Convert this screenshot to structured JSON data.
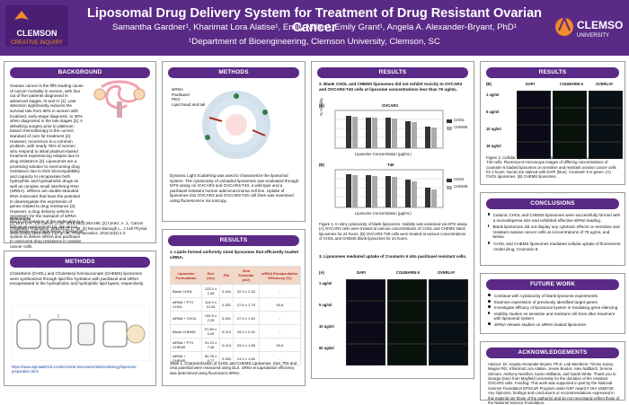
{
  "header": {
    "title": "Liposomal Drug Delivery System for Treatment of Drug Resistant Ovarian Cancer",
    "authors": "Samantha Gardner¹, Kharimat Lora Alatise¹, Emily Miller¹, Emily Grant¹, Angela A. Alexander-Bryant, PhD¹",
    "affiliation": "¹Department of Bioengineering, Clemson University, Clemson, SC",
    "left_logo_line1": "CLEMSON",
    "left_logo_line2": "CREATIVE INQUIRY",
    "right_logo_text": "CLEMSON",
    "right_logo_sub": "UNIVERSITY"
  },
  "sections": {
    "background": {
      "title": "BACKGROUND",
      "body": "Ovarian cancer is the fifth leading cause of cancer mortality in women, with four out of five patients diagnosed in advanced stages, III and IV [1]. Late detection significantly reduces the survival rate from 90% in women with localized, early-stage diagnosis, to 30% when diagnosed in the late stages [2]. A debulking surgery prior to platinum-based chemotherapy is the current standard of care for treatment [2]. However, recurrence is a common problem, with nearly 75% of women who respond to initial platinum-based treatment experiencing relapse due to drug resistance [3]. Liposomes are a promising solution to overcoming drug resistance due to their biocompatibility and capacity to encapsulate both hydrophilic and hydrophobic drugs as well as complex small interfering RNA (siRNA). siRNAs are double-stranded RNA molecules that have the potential to downregulate the expression of genes related to drug resistance [4]. However, a drug delivery vehicle is necessary for the transport of siRNA due to degradation of the molecules in a biological environment [4]. We aim to synthesize and characterize a liposomal system to deliver siRNA and paclitaxel to overcome drug resistance in ovarian cancer cells.",
      "references_title": "References",
      "references": "[1] Torre L. A., Ca Cancer J Clin. 2018;68(4):284-296. [2] Cortez, A. J., Cancer Chemother Pharmacol. 2018;81(1):17-38. [3] Norouzi-Barough L., J Cell Physiol. 2018;233(6):4546-4562. [4] Fan W., Pharmaceutics. 2018;10(4):1-2."
    },
    "methods_left": {
      "title": "METHODS",
      "body": "Cholesterol (CHOL) and Cholesteryl hemisuccinate (CHEMS) liposomes were synthesized through lipid film hydration with paclitaxel and siRNA encapsulated in the hydrophobic and hydrophilic lipid layers, respectively.",
      "link": "https://www.sigmaaldrich.com/technical-documents/articles/biology/liposome-preparation.html"
    },
    "methods_center": {
      "title": "METHODS",
      "legend": [
        "siRNA",
        "Paclitaxel",
        "PEG",
        "Lipid head and tail"
      ],
      "body": "Dynamic Light Scattering was used to characterize the liposomal system. The cytotoxicity of unloaded liposomes was evaluated through MTS assay on OVCAR3 and OVCAR3-T40, a wild-type and a paclitaxel-resistant human adenocarcinoma cell line. Uptake of liposomes into OVCAR3 and OVCAR3-T40 cell lines was examined using fluorescence microscopy."
    },
    "results_center": {
      "title": "RESULTS",
      "point1": "1. Lipids formed uniformly sized liposomes that efficiently loaded siRNA.",
      "table": {
        "headers": [
          "Liposome Formulation",
          "Size (nm)",
          "PDI",
          "Zeta Potential (mV)",
          "siRNA Encapsulation Efficiency (%)"
        ],
        "rows": [
          [
            "Blank CHOL",
            "123.0 ± 2.49",
            "0.164",
            "32.3 ± 2.18",
            "-"
          ],
          [
            "siRNA + PTX CHOL",
            "114.9 ± 10.35",
            "0.251",
            "27.6 ± 1.79",
            "93.8"
          ],
          [
            "siRNA + CHOL",
            "100.5 ± 2.25",
            "0.331",
            "27.4 ± 1.40",
            "-"
          ],
          [
            "Blank CHEMS",
            "97.89 ± 0.09",
            "0.219",
            "29.0 ± 2.00",
            "-"
          ],
          [
            "siRNA + PTX CHEMS",
            "91.23 ± 7.06",
            "0.214",
            "23.2 ± 1.58",
            "93.6"
          ],
          [
            "siRNA + CHEMS",
            "80.78 ± 0.77",
            "0.250",
            "13.1 ± 1.66",
            "-"
          ]
        ]
      },
      "caption": "Table 1. Characterization of CHOL and CHEMS Liposomes. Size, PDI and zeta potential were measured using DLS. siRNA encapsulation efficiency was determined using fluorescent siRNA."
    },
    "results_right1": {
      "title": "RESULTS",
      "point2": "2. Blank CHOL and CHEMS liposomes did not exhibit toxicity to OVCAR3 and OVCAR3-T40 cells at liposome concentrations less than 75 ug/mL.",
      "chart1_label": "OVCAR3",
      "chart2_label": "T40",
      "legend": [
        "CHOL",
        "CHEMS"
      ],
      "x_label": "Liposome Concentration (μg/mL)",
      "y_label": "% Viability",
      "fig1_caption": "Figure 1. In vitro cytotoxicity of blank liposomes. Viability was assessed via MTS assay. (A) OVCAR3 cells were treated at various concentrations of CHOL and CHEMS blank liposomes for 24 hours. (B) OVCAR3-T40 cells were treated at various concentrations of CHOL and CHEMS blank liposomes for 24 hours.",
      "point3": "3. Liposomes mediated uptake of Coumarin 6 into paclitaxel resistant cells.",
      "row_labels": [
        "1 ug/ml",
        "5 ug/ml",
        "10 ug/ml",
        "50 ug/ml"
      ],
      "col_labels": [
        "DAPI",
        "COUMARIN 6",
        "OVERLAY"
      ]
    },
    "results_right2": {
      "title": "RESULTS",
      "grid_label": "(B)",
      "row_labels": [
        "1 ug/ml",
        "5 ug/ml",
        "10 ug/ml",
        "16 ug/ml"
      ],
      "col_labels": [
        "DAPI",
        "COUMARIN 6",
        "OVERLAY"
      ],
      "fig2_caption": "Figure 2. Cellular uptake of coumarin 6 loaded CHOL liposomes on OVCAR3-T40 cells. Fluorescent microscope images of differing concentrations of coumarin 6 loaded liposomes on sensitive and resistant ovarian cancer cells for 2 hours. Nuclei are stained with DAPI (blue). Coumarin 6 is green. (A) CHOL liposomes. (B) CHEMS liposomes."
    },
    "conclusions": {
      "title": "CONCLUSIONS",
      "items": [
        "Cationic CHOL and CHEMS liposomes were successfully formed with a monodisperse size and exhibited effective siRNA loading.",
        "Blank liposomes did not display any cytotoxic effects on sensitive and resistant ovarian cancer cells at concentrations of 75 ug/mL and below.",
        "CHOL and CHEMS liposomes mediated cellular uptake of fluorescent model drug, Coumarin 6."
      ]
    },
    "future_work": {
      "title": "FUTURE WORK",
      "items": [
        "Continue with cytotoxicity of blank liposome experiments",
        "Examine expression of previously identified target genes",
        "Investigate efficacy of liposomal system in mediating gene silencing",
        "Viability studies on sensitive and resistant cell lines after treatment with liposomal system",
        "siRNA release studies on siRNA loaded liposomes"
      ]
    },
    "ack": {
      "title": "ACKNOWLEDGEMENTS",
      "body": "Advisor: Dr. Angela Alexander-Bryant, Ph.D. Lab Members: Timmy Karan, Megan Pitz, Kharimat Lora Alatise, Jessie Boulos, Alex Nallbach, Serena Gilmore, Anthony Nelofiori, Karen Williams, and Sarah White. Thank you to George Dunn from Mayfield University for the donation of the resistant OVCAR3 cells. Funding: This work was supported in part by the National Science Foundation EPSCoR Program under NSF Award # OIA-1655740. Any Opinions, findings and conclusions or recommendations expressed in this material are those of the author(s) and do not necessarily reflect those of the National Science Foundation."
    }
  }
}
